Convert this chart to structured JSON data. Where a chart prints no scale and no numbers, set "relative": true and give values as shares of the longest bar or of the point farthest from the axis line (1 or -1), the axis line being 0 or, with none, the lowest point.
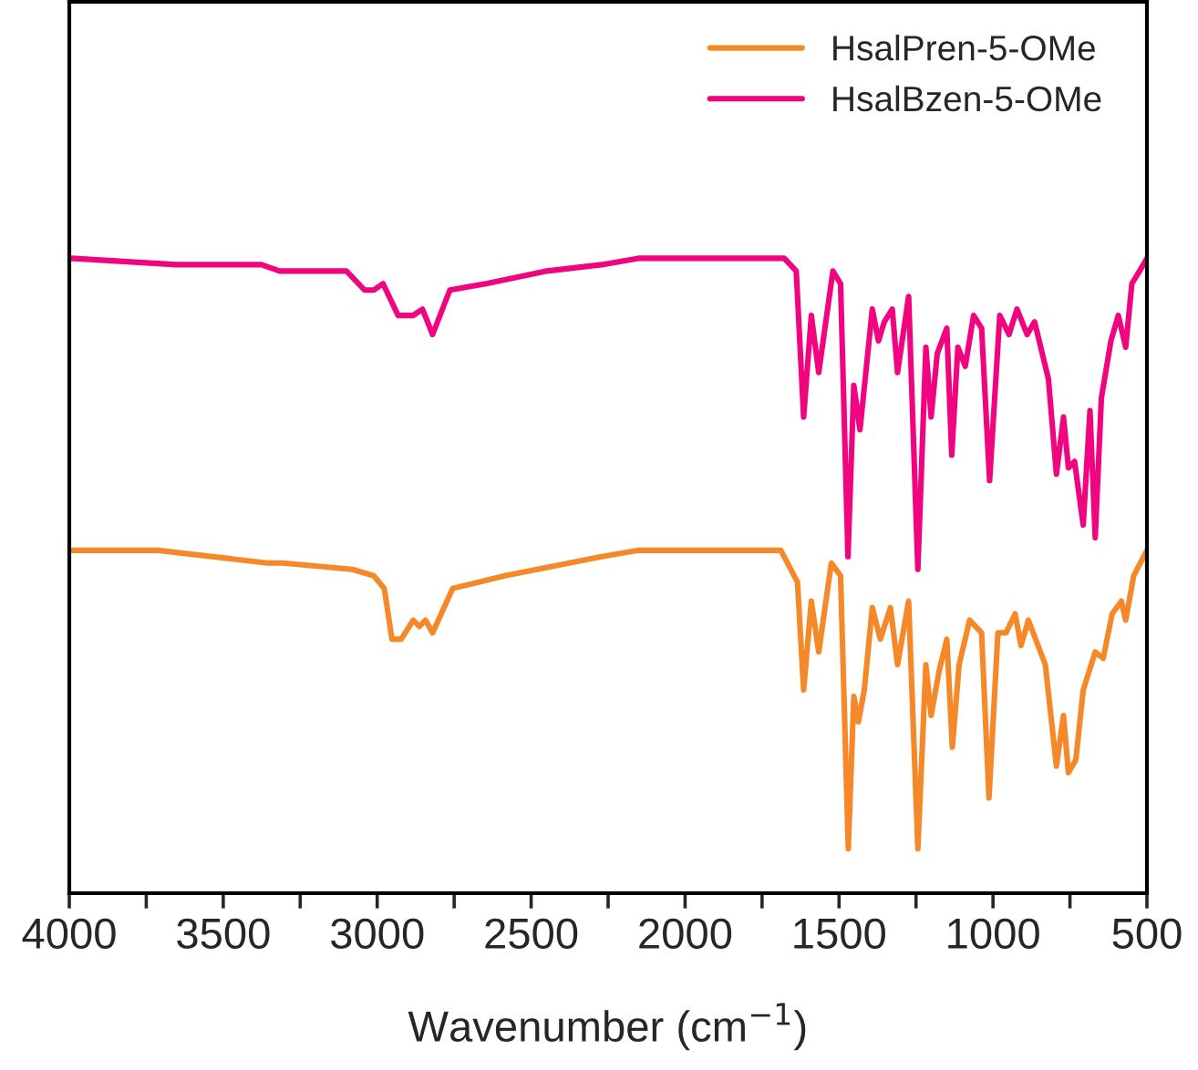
{
  "chart_data": {
    "type": "line",
    "relative": true,
    "xlabel": "Wavenumber (cm$^{−1}$)",
    "xlim": [
      4000,
      500
    ],
    "xticks": [
      4000,
      {
        "value": 3750,
        "label": null
      },
      3500,
      {
        "value": 3250,
        "label": null
      },
      3000,
      {
        "value": 2750,
        "label": null
      },
      2500,
      {
        "value": 2250,
        "label": null
      },
      2000,
      {
        "value": 1750,
        "label": null
      },
      1500,
      {
        "value": 1250,
        "label": null
      },
      1000,
      {
        "value": 750,
        "label": null
      },
      500
    ],
    "tick_labels": "x",
    "legend": "top right",
    "grid": false,
    "marker": "none",
    "line_style": "solid",
    "series": [
      {
        "name": "HsalPren-5-OMe",
        "color": "#f5892a",
        "x": [
          3995,
          3712,
          3356,
          3307,
          3080,
          3011,
          2977,
          2952,
          2922,
          2883,
          2863,
          2843,
          2820,
          2755,
          2586,
          2271,
          2152,
          1876,
          1689,
          1635,
          1615,
          1590,
          1566,
          1525,
          1495,
          1470,
          1452,
          1437,
          1418,
          1392,
          1366,
          1333,
          1310,
          1274,
          1244,
          1218,
          1201,
          1175,
          1150,
          1132,
          1110,
          1076,
          1037,
          1013,
          984,
          958,
          928,
          909,
          885,
          830,
          794,
          771,
          755,
          731,
          707,
          668,
          642,
          613,
          583,
          569,
          543,
          500
        ],
        "values": [
          0.54,
          0.54,
          0.52,
          0.52,
          0.51,
          0.5,
          0.48,
          0.4,
          0.4,
          0.43,
          0.42,
          0.43,
          0.41,
          0.48,
          0.5,
          0.53,
          0.54,
          0.54,
          0.54,
          0.49,
          0.32,
          0.46,
          0.38,
          0.52,
          0.5,
          0.07,
          0.31,
          0.27,
          0.32,
          0.45,
          0.4,
          0.45,
          0.36,
          0.46,
          0.07,
          0.36,
          0.28,
          0.35,
          0.4,
          0.23,
          0.36,
          0.43,
          0.41,
          0.15,
          0.41,
          0.41,
          0.44,
          0.39,
          0.43,
          0.36,
          0.2,
          0.28,
          0.19,
          0.21,
          0.32,
          0.38,
          0.37,
          0.44,
          0.46,
          0.43,
          0.5,
          0.54
        ]
      },
      {
        "name": "HsalBzen-5-OMe",
        "color": "#f0047f",
        "x": [
          3995,
          3652,
          3376,
          3317,
          3278,
          3100,
          3041,
          3011,
          2981,
          2932,
          2883,
          2853,
          2820,
          2764,
          2646,
          2448,
          2271,
          2152,
          1876,
          1678,
          1639,
          1615,
          1590,
          1566,
          1520,
          1495,
          1471,
          1452,
          1432,
          1392,
          1372,
          1353,
          1327,
          1310,
          1274,
          1244,
          1218,
          1201,
          1181,
          1150,
          1134,
          1114,
          1090,
          1063,
          1037,
          1011,
          978,
          948,
          922,
          889,
          865,
          820,
          794,
          771,
          755,
          735,
          707,
          685,
          668,
          648,
          617,
          593,
          569,
          549,
          524,
          500
        ],
        "values": [
          1.0,
          0.99,
          0.99,
          0.98,
          0.98,
          0.98,
          0.95,
          0.95,
          0.96,
          0.91,
          0.91,
          0.92,
          0.88,
          0.95,
          0.96,
          0.98,
          0.99,
          1.0,
          1.0,
          1.0,
          0.98,
          0.75,
          0.91,
          0.82,
          0.98,
          0.96,
          0.53,
          0.8,
          0.73,
          0.92,
          0.87,
          0.9,
          0.92,
          0.82,
          0.94,
          0.51,
          0.86,
          0.75,
          0.85,
          0.89,
          0.69,
          0.86,
          0.83,
          0.91,
          0.89,
          0.65,
          0.91,
          0.88,
          0.92,
          0.88,
          0.9,
          0.81,
          0.66,
          0.75,
          0.67,
          0.68,
          0.58,
          0.76,
          0.56,
          0.78,
          0.87,
          0.91,
          0.86,
          0.96,
          0.98,
          1.0
        ]
      }
    ]
  }
}
